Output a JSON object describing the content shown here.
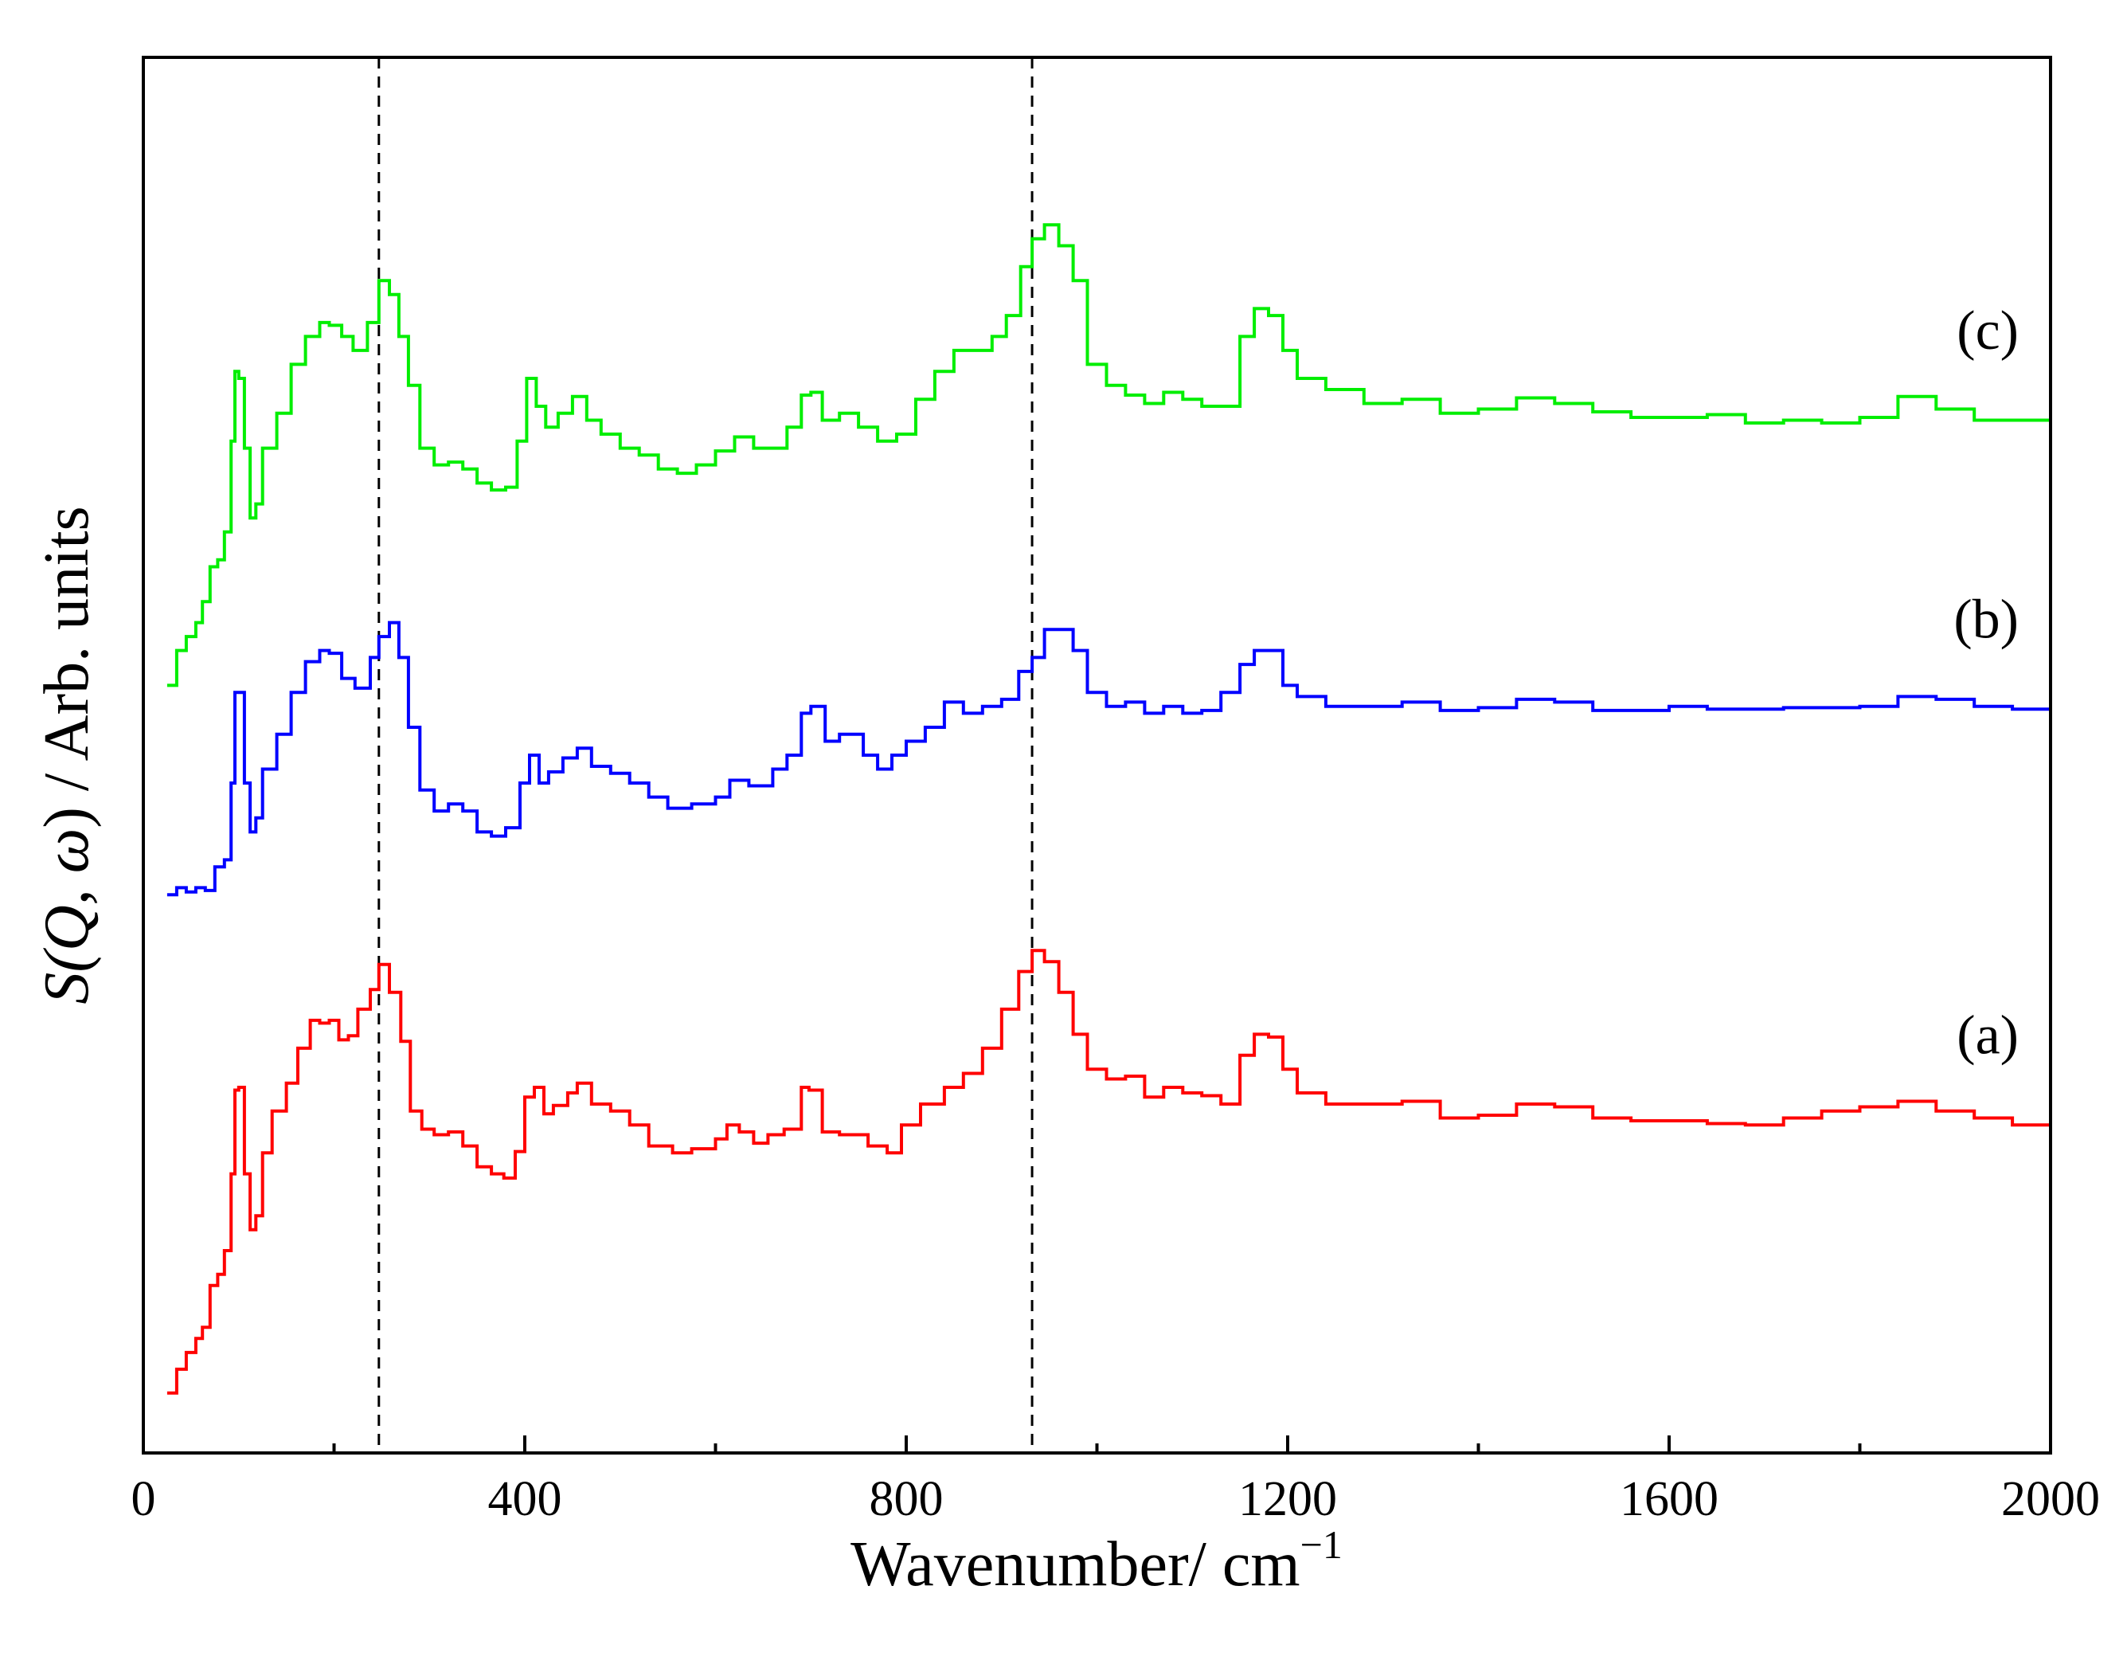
{
  "chart_data": {
    "type": "line",
    "title": "",
    "xlabel": "Wavenumber/ cm",
    "xlabel_superscript": "−1",
    "ylabel_prefix": "S(",
    "ylabel_math": "Q, ω",
    "ylabel_suffix": ") / Arb. units",
    "xlim": [
      0,
      2000
    ],
    "ylim": [
      0,
      1
    ],
    "x_ticks": [
      0,
      400,
      800,
      1200,
      1600,
      2000
    ],
    "x_tick_labels": [
      "0",
      "400",
      "800",
      "1200",
      "1600",
      "2000"
    ],
    "y_ticks_visible": false,
    "grid": false,
    "legend": "none",
    "reference_lines_x": [
      247,
      932
    ],
    "series": [
      {
        "name": "(a)",
        "color": "#ff0000",
        "points": [
          [
            25,
            0.043
          ],
          [
            35,
            0.06
          ],
          [
            45,
            0.072
          ],
          [
            55,
            0.082
          ],
          [
            62,
            0.09
          ],
          [
            70,
            0.12
          ],
          [
            78,
            0.128
          ],
          [
            85,
            0.145
          ],
          [
            92,
            0.2
          ],
          [
            96,
            0.26
          ],
          [
            100,
            0.262
          ],
          [
            106,
            0.2
          ],
          [
            112,
            0.16
          ],
          [
            118,
            0.17
          ],
          [
            125,
            0.215
          ],
          [
            135,
            0.245
          ],
          [
            150,
            0.265
          ],
          [
            162,
            0.29
          ],
          [
            175,
            0.31
          ],
          [
            185,
            0.308
          ],
          [
            195,
            0.31
          ],
          [
            205,
            0.296
          ],
          [
            215,
            0.299
          ],
          [
            225,
            0.318
          ],
          [
            238,
            0.332
          ],
          [
            247,
            0.35
          ],
          [
            258,
            0.33
          ],
          [
            270,
            0.295
          ],
          [
            280,
            0.245
          ],
          [
            292,
            0.232
          ],
          [
            305,
            0.228
          ],
          [
            320,
            0.23
          ],
          [
            335,
            0.22
          ],
          [
            350,
            0.205
          ],
          [
            365,
            0.2
          ],
          [
            378,
            0.197
          ],
          [
            390,
            0.216
          ],
          [
            400,
            0.255
          ],
          [
            410,
            0.262
          ],
          [
            420,
            0.243
          ],
          [
            430,
            0.249
          ],
          [
            445,
            0.258
          ],
          [
            455,
            0.265
          ],
          [
            470,
            0.25
          ],
          [
            490,
            0.245
          ],
          [
            510,
            0.235
          ],
          [
            530,
            0.22
          ],
          [
            555,
            0.215
          ],
          [
            575,
            0.218
          ],
          [
            600,
            0.225
          ],
          [
            612,
            0.235
          ],
          [
            625,
            0.23
          ],
          [
            640,
            0.222
          ],
          [
            655,
            0.228
          ],
          [
            672,
            0.232
          ],
          [
            690,
            0.262
          ],
          [
            698,
            0.26
          ],
          [
            712,
            0.23
          ],
          [
            730,
            0.228
          ],
          [
            760,
            0.22
          ],
          [
            780,
            0.215
          ],
          [
            795,
            0.235
          ],
          [
            815,
            0.25
          ],
          [
            840,
            0.262
          ],
          [
            860,
            0.272
          ],
          [
            880,
            0.29
          ],
          [
            900,
            0.318
          ],
          [
            918,
            0.345
          ],
          [
            932,
            0.36
          ],
          [
            945,
            0.352
          ],
          [
            960,
            0.33
          ],
          [
            975,
            0.3
          ],
          [
            990,
            0.275
          ],
          [
            1010,
            0.268
          ],
          [
            1030,
            0.27
          ],
          [
            1050,
            0.255
          ],
          [
            1070,
            0.262
          ],
          [
            1090,
            0.258
          ],
          [
            1110,
            0.256
          ],
          [
            1130,
            0.25
          ],
          [
            1150,
            0.285
          ],
          [
            1165,
            0.3
          ],
          [
            1180,
            0.298
          ],
          [
            1195,
            0.275
          ],
          [
            1210,
            0.258
          ],
          [
            1240,
            0.25
          ],
          [
            1280,
            0.25
          ],
          [
            1320,
            0.252
          ],
          [
            1360,
            0.24
          ],
          [
            1400,
            0.242
          ],
          [
            1440,
            0.25
          ],
          [
            1480,
            0.248
          ],
          [
            1520,
            0.24
          ],
          [
            1560,
            0.238
          ],
          [
            1600,
            0.238
          ],
          [
            1640,
            0.236
          ],
          [
            1680,
            0.235
          ],
          [
            1720,
            0.24
          ],
          [
            1760,
            0.245
          ],
          [
            1800,
            0.248
          ],
          [
            1840,
            0.252
          ],
          [
            1880,
            0.245
          ],
          [
            1920,
            0.24
          ],
          [
            1960,
            0.235
          ],
          [
            2000,
            0.232
          ]
        ]
      },
      {
        "name": "(b)",
        "color": "#0000ff",
        "points": [
          [
            25,
            0.4
          ],
          [
            35,
            0.405
          ],
          [
            45,
            0.402
          ],
          [
            55,
            0.405
          ],
          [
            65,
            0.403
          ],
          [
            75,
            0.42
          ],
          [
            85,
            0.425
          ],
          [
            92,
            0.48
          ],
          [
            96,
            0.545
          ],
          [
            100,
            0.545
          ],
          [
            106,
            0.48
          ],
          [
            112,
            0.445
          ],
          [
            118,
            0.455
          ],
          [
            125,
            0.49
          ],
          [
            140,
            0.515
          ],
          [
            155,
            0.545
          ],
          [
            170,
            0.567
          ],
          [
            185,
            0.575
          ],
          [
            195,
            0.573
          ],
          [
            208,
            0.555
          ],
          [
            222,
            0.548
          ],
          [
            238,
            0.57
          ],
          [
            247,
            0.585
          ],
          [
            258,
            0.595
          ],
          [
            268,
            0.57
          ],
          [
            278,
            0.52
          ],
          [
            290,
            0.475
          ],
          [
            305,
            0.46
          ],
          [
            320,
            0.465
          ],
          [
            335,
            0.46
          ],
          [
            350,
            0.445
          ],
          [
            365,
            0.442
          ],
          [
            380,
            0.448
          ],
          [
            395,
            0.48
          ],
          [
            405,
            0.5
          ],
          [
            415,
            0.48
          ],
          [
            425,
            0.488
          ],
          [
            440,
            0.498
          ],
          [
            455,
            0.505
          ],
          [
            470,
            0.492
          ],
          [
            490,
            0.487
          ],
          [
            510,
            0.48
          ],
          [
            530,
            0.47
          ],
          [
            550,
            0.462
          ],
          [
            575,
            0.465
          ],
          [
            600,
            0.47
          ],
          [
            615,
            0.482
          ],
          [
            635,
            0.478
          ],
          [
            660,
            0.49
          ],
          [
            675,
            0.5
          ],
          [
            690,
            0.53
          ],
          [
            700,
            0.535
          ],
          [
            715,
            0.51
          ],
          [
            730,
            0.515
          ],
          [
            755,
            0.5
          ],
          [
            770,
            0.49
          ],
          [
            785,
            0.5
          ],
          [
            800,
            0.51
          ],
          [
            820,
            0.52
          ],
          [
            840,
            0.538
          ],
          [
            860,
            0.53
          ],
          [
            880,
            0.535
          ],
          [
            900,
            0.54
          ],
          [
            918,
            0.56
          ],
          [
            932,
            0.57
          ],
          [
            945,
            0.59
          ],
          [
            960,
            0.59
          ],
          [
            975,
            0.575
          ],
          [
            990,
            0.545
          ],
          [
            1010,
            0.535
          ],
          [
            1030,
            0.538
          ],
          [
            1050,
            0.53
          ],
          [
            1070,
            0.535
          ],
          [
            1090,
            0.53
          ],
          [
            1110,
            0.532
          ],
          [
            1130,
            0.545
          ],
          [
            1150,
            0.565
          ],
          [
            1165,
            0.575
          ],
          [
            1180,
            0.575
          ],
          [
            1195,
            0.55
          ],
          [
            1210,
            0.542
          ],
          [
            1240,
            0.535
          ],
          [
            1280,
            0.535
          ],
          [
            1320,
            0.538
          ],
          [
            1360,
            0.532
          ],
          [
            1400,
            0.534
          ],
          [
            1440,
            0.54
          ],
          [
            1480,
            0.538
          ],
          [
            1520,
            0.532
          ],
          [
            1560,
            0.532
          ],
          [
            1600,
            0.535
          ],
          [
            1640,
            0.533
          ],
          [
            1680,
            0.533
          ],
          [
            1720,
            0.534
          ],
          [
            1760,
            0.534
          ],
          [
            1800,
            0.535
          ],
          [
            1840,
            0.542
          ],
          [
            1880,
            0.54
          ],
          [
            1920,
            0.535
          ],
          [
            1960,
            0.533
          ],
          [
            2000,
            0.53
          ]
        ]
      },
      {
        "name": "(c)",
        "color": "#00ee00",
        "points": [
          [
            25,
            0.55
          ],
          [
            35,
            0.575
          ],
          [
            45,
            0.585
          ],
          [
            55,
            0.595
          ],
          [
            62,
            0.61
          ],
          [
            70,
            0.635
          ],
          [
            78,
            0.64
          ],
          [
            85,
            0.66
          ],
          [
            92,
            0.725
          ],
          [
            96,
            0.775
          ],
          [
            100,
            0.77
          ],
          [
            106,
            0.72
          ],
          [
            112,
            0.67
          ],
          [
            118,
            0.68
          ],
          [
            125,
            0.72
          ],
          [
            140,
            0.745
          ],
          [
            155,
            0.78
          ],
          [
            170,
            0.8
          ],
          [
            185,
            0.81
          ],
          [
            195,
            0.808
          ],
          [
            208,
            0.8
          ],
          [
            220,
            0.79
          ],
          [
            235,
            0.81
          ],
          [
            247,
            0.84
          ],
          [
            258,
            0.83
          ],
          [
            268,
            0.8
          ],
          [
            278,
            0.765
          ],
          [
            290,
            0.72
          ],
          [
            305,
            0.708
          ],
          [
            320,
            0.71
          ],
          [
            335,
            0.705
          ],
          [
            350,
            0.695
          ],
          [
            365,
            0.69
          ],
          [
            380,
            0.692
          ],
          [
            392,
            0.725
          ],
          [
            402,
            0.77
          ],
          [
            412,
            0.75
          ],
          [
            422,
            0.735
          ],
          [
            435,
            0.745
          ],
          [
            450,
            0.757
          ],
          [
            465,
            0.74
          ],
          [
            480,
            0.73
          ],
          [
            500,
            0.72
          ],
          [
            520,
            0.715
          ],
          [
            540,
            0.705
          ],
          [
            560,
            0.702
          ],
          [
            580,
            0.708
          ],
          [
            600,
            0.718
          ],
          [
            620,
            0.728
          ],
          [
            640,
            0.72
          ],
          [
            660,
            0.72
          ],
          [
            675,
            0.735
          ],
          [
            690,
            0.758
          ],
          [
            700,
            0.76
          ],
          [
            712,
            0.74
          ],
          [
            730,
            0.745
          ],
          [
            750,
            0.735
          ],
          [
            770,
            0.725
          ],
          [
            790,
            0.73
          ],
          [
            810,
            0.755
          ],
          [
            830,
            0.775
          ],
          [
            850,
            0.79
          ],
          [
            870,
            0.79
          ],
          [
            890,
            0.8
          ],
          [
            905,
            0.815
          ],
          [
            920,
            0.85
          ],
          [
            932,
            0.87
          ],
          [
            945,
            0.88
          ],
          [
            960,
            0.865
          ],
          [
            975,
            0.84
          ],
          [
            990,
            0.78
          ],
          [
            1010,
            0.765
          ],
          [
            1030,
            0.758
          ],
          [
            1050,
            0.752
          ],
          [
            1070,
            0.76
          ],
          [
            1090,
            0.755
          ],
          [
            1110,
            0.75
          ],
          [
            1130,
            0.75
          ],
          [
            1150,
            0.8
          ],
          [
            1165,
            0.82
          ],
          [
            1180,
            0.815
          ],
          [
            1195,
            0.79
          ],
          [
            1210,
            0.77
          ],
          [
            1240,
            0.762
          ],
          [
            1280,
            0.752
          ],
          [
            1320,
            0.755
          ],
          [
            1360,
            0.745
          ],
          [
            1400,
            0.748
          ],
          [
            1440,
            0.756
          ],
          [
            1480,
            0.752
          ],
          [
            1520,
            0.746
          ],
          [
            1560,
            0.742
          ],
          [
            1600,
            0.742
          ],
          [
            1640,
            0.744
          ],
          [
            1680,
            0.738
          ],
          [
            1720,
            0.74
          ],
          [
            1760,
            0.738
          ],
          [
            1800,
            0.742
          ],
          [
            1840,
            0.757
          ],
          [
            1880,
            0.748
          ],
          [
            1920,
            0.74
          ],
          [
            1960,
            0.74
          ],
          [
            2000,
            0.737
          ]
        ]
      }
    ]
  }
}
